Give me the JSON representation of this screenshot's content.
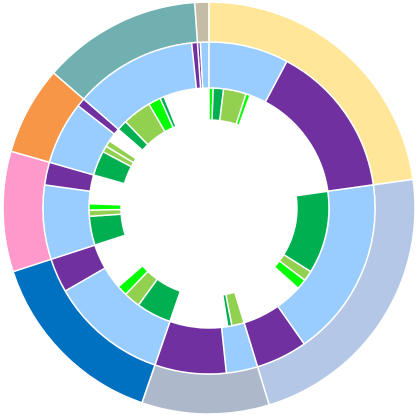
{
  "chart_data": {
    "type": "sunburst",
    "nodes": [
      {
        "value": 4,
        "color": "#c4bca4",
        "children": [
          {
            "value": 1,
            "color": "#7030a0"
          },
          {
            "value": 3,
            "color": "#99ccff"
          }
        ]
      },
      {
        "value": 82,
        "color": "#ffe699",
        "children": [
          {
            "value": 28,
            "color": "#99ccff",
            "children": [
              {
                "value": 2,
                "color": "#00ff00"
              },
              {
                "value": 5,
                "color": "#00b050"
              },
              {
                "value": 11,
                "color": "#92d050"
              },
              {
                "value": 2,
                "color": "#00ff00"
              }
            ]
          },
          {
            "value": 54,
            "color": "#7030a0"
          }
        ]
      },
      {
        "value": 81,
        "color": "#b4c7e7",
        "children": [
          {
            "value": 63,
            "color": "#99ccff",
            "children": [
              {
                "value": 40,
                "color": "#00b050"
              },
              {
                "value": 5,
                "color": "#92d050"
              },
              {
                "value": 5,
                "color": "#00ff00"
              }
            ]
          },
          {
            "value": 18,
            "color": "#7030a0"
          }
        ]
      },
      {
        "value": 36,
        "color": "#adb9ca",
        "children": [
          {
            "value": 11,
            "color": "#99ccff",
            "children": [
              {
                "value": 6,
                "color": "#92d050"
              },
              {
                "value": 2,
                "color": "#00b050"
              }
            ]
          },
          {
            "value": 25,
            "color": "#7030a0"
          }
        ]
      },
      {
        "value": 53,
        "color": "#0070c0",
        "children": [
          {
            "value": 41,
            "color": "#99ccff",
            "children": [
              {
                "value": 17,
                "color": "#00b050"
              },
              {
                "value": 8,
                "color": "#92d050"
              },
              {
                "value": 5,
                "color": "#00ff00"
              }
            ]
          },
          {
            "value": 12,
            "color": "#7030a0"
          }
        ]
      },
      {
        "value": 34,
        "color": "#ff99cc",
        "children": [
          {
            "value": 26,
            "color": "#99ccff",
            "children": [
              {
                "value": 14,
                "color": "#00b050"
              },
              {
                "value": 3,
                "color": "#92d050"
              },
              {
                "value": 3,
                "color": "#00ff00"
              }
            ]
          },
          {
            "value": 8,
            "color": "#7030a0"
          }
        ]
      },
      {
        "value": 25,
        "color": "#f79646",
        "children": [
          {
            "value": 22,
            "color": "#99ccff",
            "children": [
              {
                "value": 12,
                "color": "#00b050"
              },
              {
                "value": 3,
                "color": "#92d050"
              },
              {
                "value": 3,
                "color": "#92d050"
              }
            ]
          },
          {
            "value": 3,
            "color": "#7030a0"
          }
        ]
      },
      {
        "value": 45,
        "color": "#70b0b0",
        "children": [
          {
            "value": 43,
            "color": "#99ccff",
            "children": [
              {
                "value": 5,
                "color": "#00b050"
              },
              {
                "value": 14,
                "color": "#92d050"
              },
              {
                "value": 6,
                "color": "#00ff00"
              },
              {
                "value": 2,
                "color": "#00b050"
              }
            ]
          },
          {
            "value": 2,
            "color": "#7030a0"
          }
        ]
      }
    ]
  }
}
